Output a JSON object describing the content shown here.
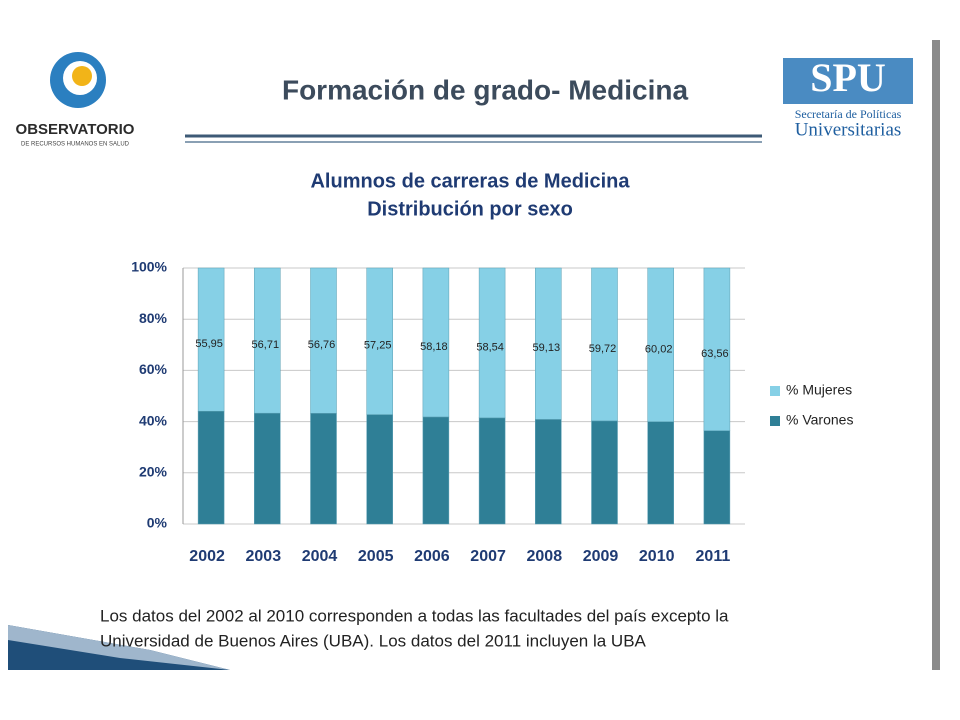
{
  "header": {
    "title": "Formación de grado- Medicina",
    "left_logo": {
      "name": "OBSERVATORIO",
      "subtitle": "DE RECURSOS HUMANOS EN SALUD"
    },
    "right_logo": {
      "name": "SPU",
      "line1": "Secretaría de Políticas",
      "line2": "Universitarias"
    }
  },
  "chart_data": {
    "type": "stacked_bar",
    "title": [
      "Alumnos de carreras de Medicina",
      "Distribución por sexo"
    ],
    "categories": [
      "2002",
      "2003",
      "2004",
      "2005",
      "2006",
      "2007",
      "2008",
      "2009",
      "2010",
      "2011"
    ],
    "series": [
      {
        "name": "% Varones",
        "color": "#2f7f96",
        "values": [
          44.05,
          43.29,
          43.24,
          42.75,
          41.82,
          41.46,
          40.87,
          40.28,
          39.98,
          36.44
        ]
      },
      {
        "name": "% Mujeres",
        "color": "#86d0e6",
        "values": [
          55.95,
          56.71,
          56.76,
          57.25,
          58.18,
          58.54,
          59.13,
          59.72,
          60.02,
          63.56
        ],
        "value_labels": [
          "55,95",
          "56,71",
          "56,76",
          "57,25",
          "58,18",
          "58,54",
          "59,13",
          "59,72",
          "60,02",
          "63,56"
        ]
      }
    ],
    "ylim": [
      0,
      100
    ],
    "yticks": [
      {
        "value": 0,
        "label": "0%"
      },
      {
        "value": 20,
        "label": "20%"
      },
      {
        "value": 40,
        "label": "40%"
      },
      {
        "value": 60,
        "label": "60%"
      },
      {
        "value": 80,
        "label": "80%"
      },
      {
        "value": 100,
        "label": "100%"
      }
    ],
    "grid": true,
    "legend": "right"
  },
  "footnote": [
    "Los datos del 2002 al 2010 corresponden a todas las facultades del país excepto la",
    "Universidad de Buenos Aires (UBA). Los datos del 2011 incluyen la UBA"
  ]
}
